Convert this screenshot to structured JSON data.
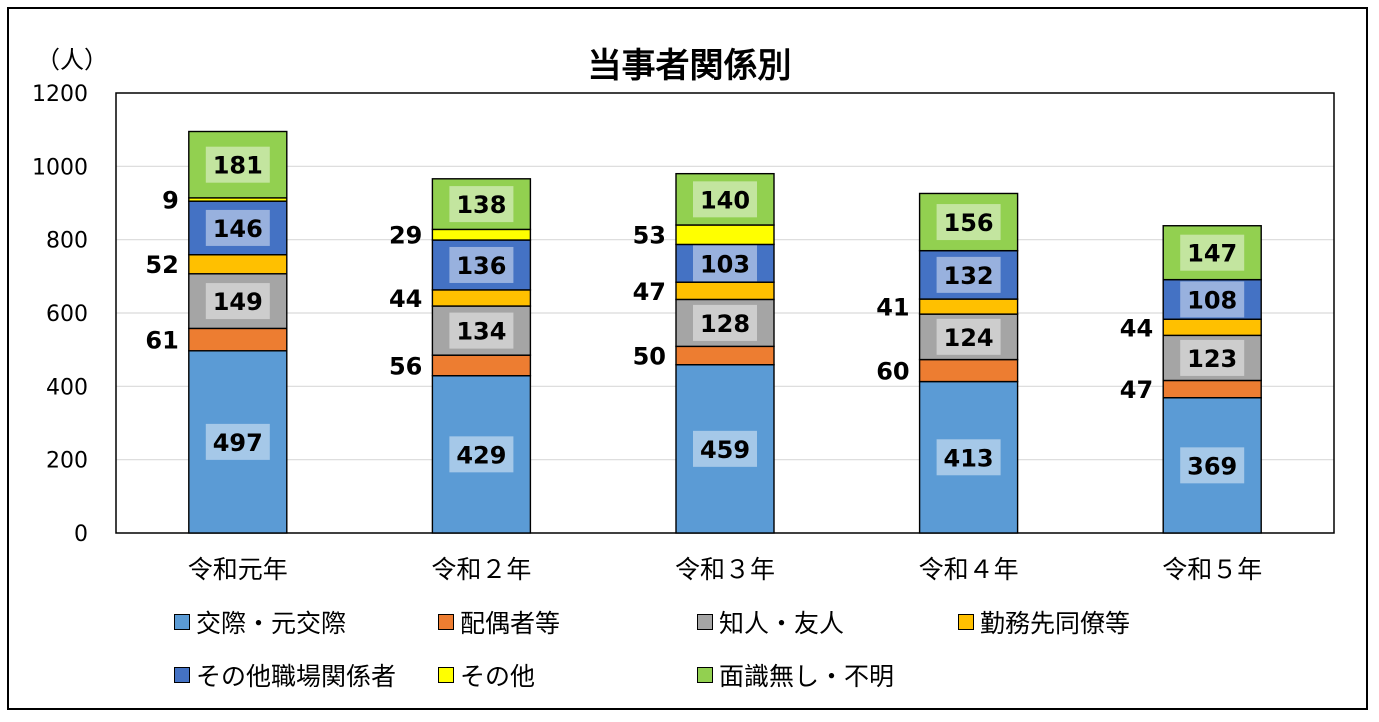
{
  "chart_data": {
    "type": "bar",
    "stacked": true,
    "title": "当事者関係別",
    "ylabel": "（人）",
    "ylim": [
      0,
      1200
    ],
    "yticks": [
      0,
      200,
      400,
      600,
      800,
      1000,
      1200
    ],
    "grid": true,
    "legend_position": "bottom",
    "categories": [
      "令和元年",
      "令和２年",
      "令和３年",
      "令和４年",
      "令和５年"
    ],
    "series": [
      {
        "name": "交際・元交際",
        "color": "#5B9BD5",
        "values": [
          497,
          429,
          459,
          413,
          369
        ]
      },
      {
        "name": "配偶者等",
        "color": "#ED7D31",
        "values": [
          61,
          56,
          50,
          60,
          47
        ]
      },
      {
        "name": "知人・友人",
        "color": "#A5A5A5",
        "values": [
          149,
          134,
          128,
          124,
          123
        ]
      },
      {
        "name": "勤務先同僚等",
        "color": "#FFC000",
        "values": [
          52,
          44,
          47,
          41,
          44
        ]
      },
      {
        "name": "その他職場関係者",
        "color": "#4472C4",
        "values": [
          146,
          136,
          103,
          132,
          108
        ]
      },
      {
        "name": "その他",
        "color": "#FFFF00",
        "values": [
          9,
          29,
          53,
          0,
          0
        ]
      },
      {
        "name": "面識無し・不明",
        "color": "#92D050",
        "values": [
          181,
          138,
          140,
          156,
          147
        ]
      }
    ]
  }
}
